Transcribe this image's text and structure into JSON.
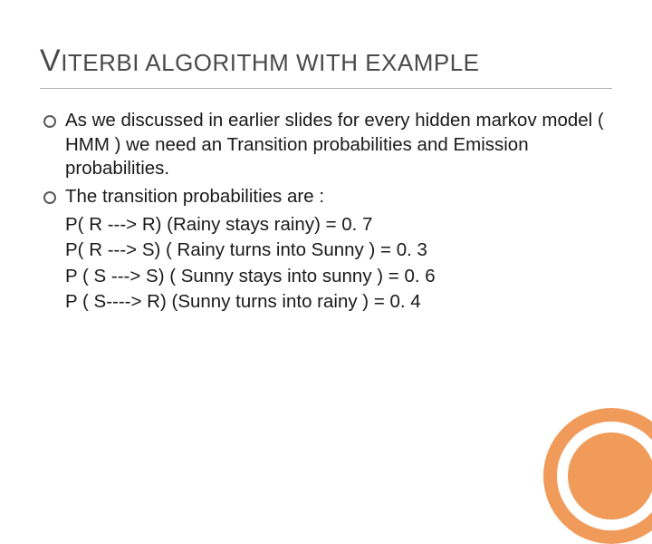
{
  "title_first": "V",
  "title_rest": "ITERBI ALGORITHM WITH EXAMPLE",
  "bullets": [
    {
      "text": "As we discussed in earlier slides for every hidden markov model ( HMM ) we need an Transition probabilities and Emission probabilities.",
      "sub": []
    },
    {
      "text": "The transition probabilities are :",
      "sub": [
        "P( R ---> R) (Rainy stays rainy) = 0. 7",
        "P( R ---> S) ( Rainy turns into Sunny ) = 0. 3",
        "P ( S ---> S)  ( Sunny stays into sunny ) = 0. 6",
        "P ( S----> R)  (Sunny turns into rainy ) = 0. 4"
      ]
    }
  ],
  "colors": {
    "title": "#4a4a4a",
    "body": "#1a1a1a",
    "accent": "#f19b5b",
    "rule": "#b0b0b0",
    "background": "#ffffff"
  },
  "typography": {
    "title_fontsize": 26,
    "title_first_fontsize": 34,
    "body_fontsize": 20.5,
    "line_height": 1.3
  }
}
